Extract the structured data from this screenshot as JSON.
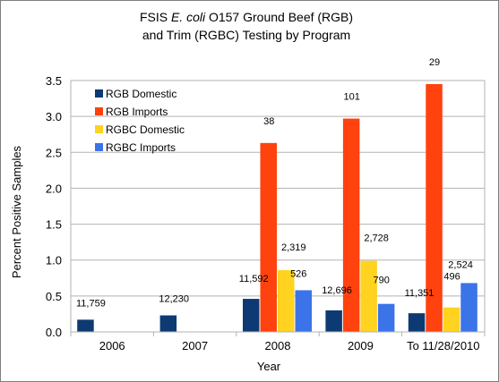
{
  "chart_data": {
    "type": "bar",
    "title_parts": {
      "before": "FSIS ",
      "italic": "E. coli",
      "after": " O157 Ground Beef (RGB)",
      "line2": "and Trim (RGBC) Testing by Program"
    },
    "xlabel": "Year",
    "ylabel": "Percent Positive Samples",
    "ylim": [
      0,
      3.5
    ],
    "yticks": [
      "0.0",
      "0.5",
      "1.0",
      "1.5",
      "2.0",
      "2.5",
      "3.0",
      "3.5"
    ],
    "categories": [
      "2006",
      "2007",
      "2008",
      "2009",
      "To 11/28/2010"
    ],
    "grid": true,
    "legend_position": "top-left",
    "series": [
      {
        "name": "RGB Domestic",
        "color": "#0e3a74",
        "values": [
          0.17,
          0.23,
          0.46,
          0.3,
          0.26
        ],
        "labels": [
          "11,759",
          "12,230",
          "11,592",
          "12,696",
          "11,351"
        ]
      },
      {
        "name": "RGB Imports",
        "color": "#ff420e",
        "values": [
          null,
          null,
          2.63,
          2.97,
          3.45
        ],
        "labels": [
          null,
          null,
          "38",
          "101",
          "29"
        ]
      },
      {
        "name": "RGBC Domestic",
        "color": "#ffd320",
        "values": [
          null,
          null,
          0.86,
          0.99,
          0.34
        ],
        "labels": [
          null,
          null,
          "2,319",
          "2,728",
          "496"
        ]
      },
      {
        "name": "RGBC Imports",
        "color": "#3b73e8",
        "values": [
          null,
          null,
          0.58,
          0.39,
          0.68
        ],
        "labels": [
          null,
          null,
          "526",
          "790",
          "2,524"
        ]
      }
    ]
  }
}
